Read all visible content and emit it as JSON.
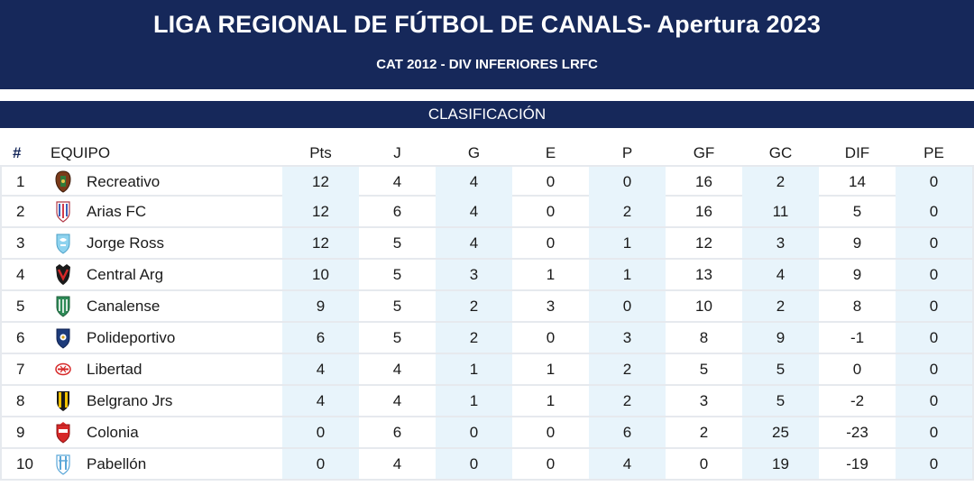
{
  "header": {
    "title": "LIGA REGIONAL DE FÚTBOL DE CANALS- Apertura 2023",
    "subtitle": "CAT 2012 - DIV INFERIORES LRFC"
  },
  "section": {
    "label": "CLASIFICACIÓN"
  },
  "columns": {
    "hash": "#",
    "team": "EQUIPO",
    "pts": "Pts",
    "j": "J",
    "g": "G",
    "e": "E",
    "p": "P",
    "gf": "GF",
    "gc": "GC",
    "dif": "DIF",
    "pe": "PE"
  },
  "colors": {
    "header_bg": "#16285a",
    "shade": "#e8f4fb",
    "border": "#e6e9ee"
  },
  "standings": [
    {
      "pos": "1",
      "team": "Recreativo",
      "crest": "recreativo-crest-icon",
      "pts": "12",
      "j": "4",
      "g": "4",
      "e": "0",
      "p": "0",
      "gf": "16",
      "gc": "2",
      "dif": "14",
      "pe": "0"
    },
    {
      "pos": "2",
      "team": "Arias FC",
      "crest": "arias-fc-crest-icon",
      "pts": "12",
      "j": "6",
      "g": "4",
      "e": "0",
      "p": "2",
      "gf": "16",
      "gc": "11",
      "dif": "5",
      "pe": "0"
    },
    {
      "pos": "3",
      "team": "Jorge Ross",
      "crest": "jorge-ross-crest-icon",
      "pts": "12",
      "j": "5",
      "g": "4",
      "e": "0",
      "p": "1",
      "gf": "12",
      "gc": "3",
      "dif": "9",
      "pe": "0"
    },
    {
      "pos": "4",
      "team": "Central Arg",
      "crest": "central-arg-crest-icon",
      "pts": "10",
      "j": "5",
      "g": "3",
      "e": "1",
      "p": "1",
      "gf": "13",
      "gc": "4",
      "dif": "9",
      "pe": "0"
    },
    {
      "pos": "5",
      "team": "Canalense",
      "crest": "canalense-crest-icon",
      "pts": "9",
      "j": "5",
      "g": "2",
      "e": "3",
      "p": "0",
      "gf": "10",
      "gc": "2",
      "dif": "8",
      "pe": "0"
    },
    {
      "pos": "6",
      "team": "Polideportivo",
      "crest": "polideportivo-crest-icon",
      "pts": "6",
      "j": "5",
      "g": "2",
      "e": "0",
      "p": "3",
      "gf": "8",
      "gc": "9",
      "dif": "-1",
      "pe": "0"
    },
    {
      "pos": "7",
      "team": "Libertad",
      "crest": "libertad-crest-icon",
      "pts": "4",
      "j": "4",
      "g": "1",
      "e": "1",
      "p": "2",
      "gf": "5",
      "gc": "5",
      "dif": "0",
      "pe": "0"
    },
    {
      "pos": "8",
      "team": "Belgrano Jrs",
      "crest": "belgrano-jrs-crest-icon",
      "pts": "4",
      "j": "4",
      "g": "1",
      "e": "1",
      "p": "2",
      "gf": "3",
      "gc": "5",
      "dif": "-2",
      "pe": "0"
    },
    {
      "pos": "9",
      "team": "Colonia",
      "crest": "colonia-crest-icon",
      "pts": "0",
      "j": "6",
      "g": "0",
      "e": "0",
      "p": "6",
      "gf": "2",
      "gc": "25",
      "dif": "-23",
      "pe": "0"
    },
    {
      "pos": "10",
      "team": "Pabellón",
      "crest": "pabellon-crest-icon",
      "pts": "0",
      "j": "4",
      "g": "0",
      "e": "0",
      "p": "4",
      "gf": "0",
      "gc": "19",
      "dif": "-19",
      "pe": "0"
    }
  ]
}
